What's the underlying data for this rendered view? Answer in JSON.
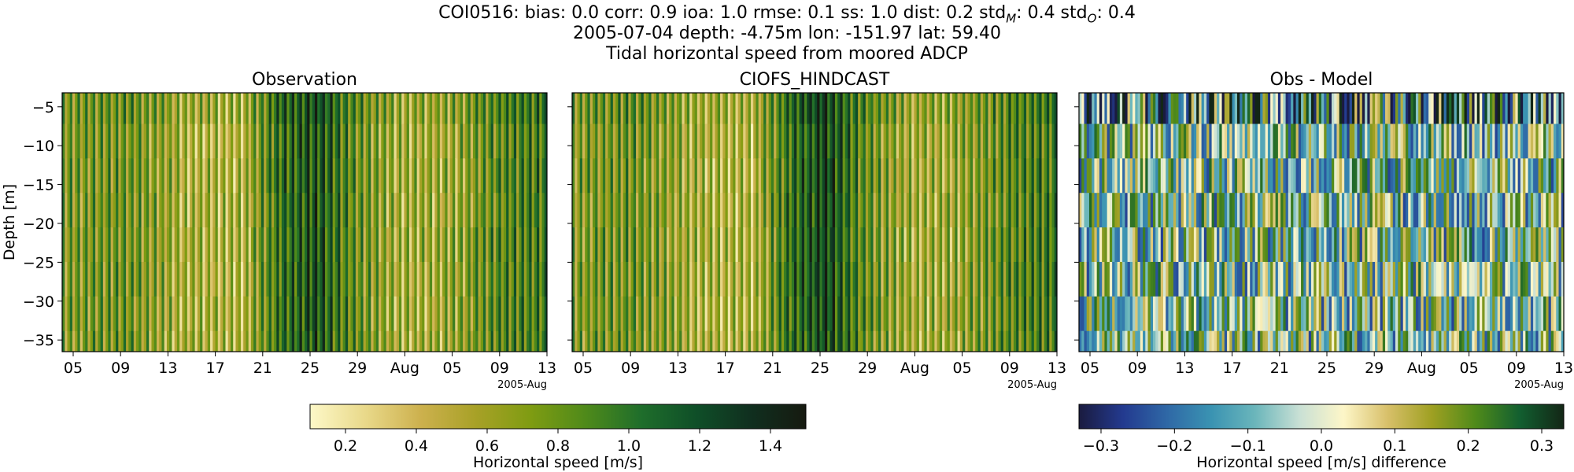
{
  "suptitle": {
    "line1": "COI0516: bias: 0.0  corr: 0.9  ioa: 1.0  rmse: 0.1  ss: 1.0  dist: 0.2  std",
    "line1_sub_model": "M",
    "line1_colon_model": ": 0.4  std",
    "line1_sub_obs": "O",
    "line1_tail": ": 0.4",
    "line2": "2005-07-04 depth: -4.75m lon: -151.97 lat: 59.40",
    "line3": "Tidal horizontal speed from moored ADCP"
  },
  "chart_data": [
    {
      "type": "heatmap",
      "title": "Observation",
      "ylabel": "Depth [m]",
      "ylim": [
        -36.5,
        -3.2
      ],
      "yticks": [
        -5,
        -10,
        -15,
        -20,
        -25,
        -30,
        -35
      ],
      "xticks": [
        "05",
        "09",
        "13",
        "17",
        "21",
        "25",
        "29",
        "Aug",
        "05",
        "09",
        "13"
      ],
      "x_offset_label": "2005-Aug",
      "x_start_date": "2005-07-04",
      "x_end_date": "2005-08-13",
      "colormap": "speed",
      "clim": [
        0.1,
        1.5
      ],
      "value_profile": [
        {
          "date": "2005-07-04",
          "mean": 0.65
        },
        {
          "date": "2005-07-09",
          "mean": 0.72
        },
        {
          "date": "2005-07-14",
          "mean": 0.5
        },
        {
          "date": "2005-07-19",
          "mean": 0.45
        },
        {
          "date": "2005-07-22",
          "mean": 0.95
        },
        {
          "date": "2005-07-25",
          "mean": 1.15
        },
        {
          "date": "2005-07-28",
          "mean": 0.75
        },
        {
          "date": "2005-08-01",
          "mean": 0.5
        },
        {
          "date": "2005-08-05",
          "mean": 0.55
        },
        {
          "date": "2005-08-09",
          "mean": 0.8
        },
        {
          "date": "2005-08-13",
          "mean": 0.9
        }
      ]
    },
    {
      "type": "heatmap",
      "title": "CIOFS_HINDCAST",
      "ylim": [
        -36.5,
        -3.2
      ],
      "xticks": [
        "05",
        "09",
        "13",
        "17",
        "21",
        "25",
        "29",
        "Aug",
        "05",
        "09",
        "13"
      ],
      "x_offset_label": "2005-Aug",
      "x_start_date": "2005-07-04",
      "x_end_date": "2005-08-13",
      "colormap": "speed",
      "clim": [
        0.1,
        1.5
      ],
      "value_profile": [
        {
          "date": "2005-07-04",
          "mean": 0.65
        },
        {
          "date": "2005-07-09",
          "mean": 0.72
        },
        {
          "date": "2005-07-14",
          "mean": 0.5
        },
        {
          "date": "2005-07-19",
          "mean": 0.45
        },
        {
          "date": "2005-07-22",
          "mean": 0.95
        },
        {
          "date": "2005-07-25",
          "mean": 1.2
        },
        {
          "date": "2005-07-28",
          "mean": 0.75
        },
        {
          "date": "2005-08-01",
          "mean": 0.5
        },
        {
          "date": "2005-08-05",
          "mean": 0.55
        },
        {
          "date": "2005-08-09",
          "mean": 0.8
        },
        {
          "date": "2005-08-13",
          "mean": 0.9
        }
      ]
    },
    {
      "type": "heatmap",
      "title": "Obs - Model",
      "ylim": [
        -36.5,
        -3.2
      ],
      "xticks": [
        "05",
        "09",
        "13",
        "17",
        "21",
        "25",
        "29",
        "Aug",
        "05",
        "09",
        "13"
      ],
      "x_offset_label": "2005-Aug",
      "x_start_date": "2005-07-04",
      "x_end_date": "2005-08-13",
      "colormap": "diff",
      "clim": [
        -0.33,
        0.33
      ]
    }
  ],
  "colorbars": [
    {
      "label": "Horizontal speed [m/s]",
      "range": [
        0.1,
        1.5
      ],
      "ticks": [
        "0.2",
        "0.4",
        "0.6",
        "0.8",
        "1.0",
        "1.2",
        "1.4"
      ],
      "tick_values": [
        0.2,
        0.4,
        0.6,
        0.8,
        1.0,
        1.2,
        1.4
      ],
      "colors": [
        "#fdf8c8",
        "#e9d98a",
        "#cdb14e",
        "#a8a127",
        "#7f9c12",
        "#4f8a1a",
        "#1f6e2b",
        "#0f4f28",
        "#102f1f",
        "#161a10"
      ]
    },
    {
      "label": "Horizontal speed [m/s] difference",
      "range": [
        -0.33,
        0.33
      ],
      "ticks": [
        "−0.3",
        "−0.2",
        "−0.1",
        "0.0",
        "0.1",
        "0.2",
        "0.3"
      ],
      "tick_values": [
        -0.3,
        -0.2,
        -0.1,
        0.0,
        0.1,
        0.2,
        0.3
      ],
      "colors": [
        "#1a1b3f",
        "#233a8f",
        "#2f68a6",
        "#3a93b2",
        "#6bb6bb",
        "#c9e0d5",
        "#fdf6c8",
        "#d8c06a",
        "#9fa022",
        "#4f8a1a",
        "#125f30",
        "#132616"
      ]
    }
  ]
}
